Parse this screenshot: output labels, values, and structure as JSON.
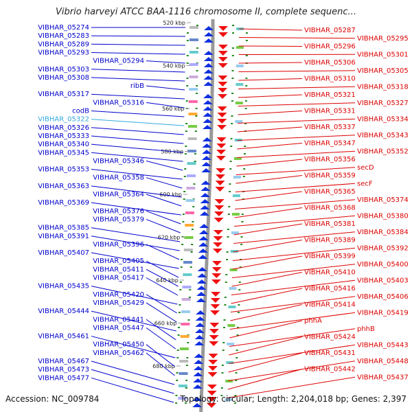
{
  "title": "Vibrio harveyi ATCC BAA-1116 chromosome II, complete sequenc...",
  "accession_text": "Accession: NC_009784",
  "summary_text": "Topology: circular; Length: 2,204,018 bp; Genes: 2,397",
  "colors": {
    "left_label": "#0000cc",
    "highlight_label": "#33aadd",
    "right_label": "#dd0000",
    "backbone": "#999999",
    "plus_strand_arrow": "#1030e0",
    "minus_strand_arrow": "#ee1111",
    "tick_mark": "#228822"
  },
  "kbp_ticks": [
    "520 kbp",
    "540 kbp",
    "560 kbp",
    "580 kbp",
    "600 kbp",
    "620 kbp",
    "640 kbp",
    "660 kbp",
    "680 kbp"
  ],
  "left_labels": [
    "VIBHAR_05274",
    "VIBHAR_05283",
    "VIBHAR_05289",
    "VIBHAR_05293",
    "VIBHAR_05294",
    "VIBHAR_05303",
    "VIBHAR_05308",
    "ribB",
    "VIBHAR_05317",
    "VIBHAR_05316",
    "codB",
    "VIBHAR_05322",
    "VIBHAR_05326",
    "VIBHAR_05333",
    "VIBHAR_05340",
    "VIBHAR_05345",
    "VIBHAR_05346",
    "VIBHAR_05353",
    "VIBHAR_05358",
    "VIBHAR_05363",
    "VIBHAR_05364",
    "VIBHAR_05369",
    "VIBHAR_05376",
    "VIBHAR_05379",
    "VIBHAR_05385",
    "VIBHAR_05391",
    "VIBHAR_05396",
    "VIBHAR_05407",
    "VIBHAR_05405",
    "VIBHAR_05411",
    "VIBHAR_05417",
    "VIBHAR_05435",
    "VIBHAR_05420",
    "VIBHAR_05429",
    "VIBHAR_05444",
    "VIBHAR_05441",
    "VIBHAR_05447",
    "VIBHAR_05461",
    "VIBHAR_05450",
    "VIBHAR_05462",
    "VIBHAR_05467",
    "VIBHAR_05473",
    "VIBHAR_05477"
  ],
  "right_labels": [
    "VIBHAR_05287",
    "VIBHAR_05295",
    "VIBHAR_05296",
    "VIBHAR_05301",
    "VIBHAR_05306",
    "VIBHAR_05305",
    "VIBHAR_05310",
    "VIBHAR_05318",
    "VIBHAR_05321",
    "VIBHAR_05327",
    "VIBHAR_05331",
    "VIBHAR_05334",
    "VIBHAR_05337",
    "VIBHAR_05343",
    "VIBHAR_05347",
    "VIBHAR_05352",
    "VIBHAR_05356",
    "secD",
    "VIBHAR_05359",
    "secF",
    "VIBHAR_05365",
    "VIBHAR_05374",
    "VIBHAR_05368",
    "VIBHAR_05380",
    "VIBHAR_05381",
    "VIBHAR_05384",
    "VIBHAR_05389",
    "VIBHAR_05392",
    "VIBHAR_05399",
    "VIBHAR_05400",
    "VIBHAR_05410",
    "VIBHAR_05403",
    "VIBHAR_05416",
    "VIBHAR_05406",
    "VIBHAR_05414",
    "VIBHAR_05419",
    "phhA",
    "phhB",
    "VIBHAR_05424",
    "VIBHAR_05443",
    "VIBHAR_05431",
    "VIBHAR_05448",
    "VIBHAR_05442",
    "VIBHAR_05437"
  ]
}
